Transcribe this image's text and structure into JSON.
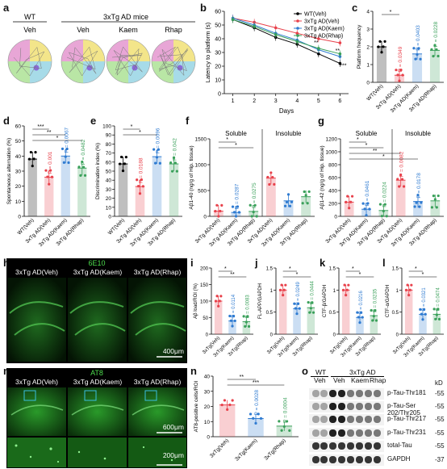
{
  "panel_labels": {
    "a": "a",
    "b": "b",
    "c": "c",
    "d": "d",
    "e": "e",
    "f": "f",
    "g": "g",
    "h": "h",
    "i": "i",
    "j": "j",
    "k": "k",
    "l": "l",
    "m": "m",
    "n": "n",
    "o": "o"
  },
  "colors": {
    "veh": "#000000",
    "ad_veh": "#e8414b",
    "ad_kaem": "#2f7bd1",
    "ad_rhap": "#3aa05a"
  },
  "panel_a": {
    "wt_header": "WT",
    "ad_header": "3xTg AD mice",
    "groups": [
      "Veh",
      "Veh",
      "Kaem",
      "Rhap"
    ]
  },
  "chart_data": [
    {
      "id": "b",
      "type": "line",
      "title": "",
      "xlabel": "Days",
      "ylabel": "Latency to platform (s)",
      "x": [
        1,
        2,
        3,
        4,
        5,
        6
      ],
      "ylim": [
        0,
        60
      ],
      "yticks": [
        0,
        10,
        20,
        30,
        40,
        50,
        60
      ],
      "series": [
        {
          "name": "WT(Veh)",
          "values": [
            54,
            48,
            41,
            36,
            29,
            22
          ]
        },
        {
          "name": "3xTg AD(Veh)",
          "values": [
            55,
            52,
            48,
            44,
            40,
            37
          ]
        },
        {
          "name": "3xTg AD(Kaem)",
          "values": [
            55,
            50,
            44,
            39,
            32,
            27
          ]
        },
        {
          "name": "3xTg AD(Rhap)",
          "values": [
            54,
            49,
            43,
            38,
            33,
            29
          ]
        }
      ],
      "annotations": [
        "**",
        "**",
        "***"
      ]
    },
    {
      "id": "c",
      "type": "bar",
      "ylabel": "Platform frequency",
      "ylim": [
        0,
        4
      ],
      "yticks": [
        0,
        1,
        2,
        3,
        4
      ],
      "categories": [
        "WT(Veh)",
        "3xTg AD(Veh)",
        "3xTg AD(Kaem)",
        "3xTg AD(Rhap)"
      ],
      "values": [
        2.0,
        0.4,
        1.6,
        1.8
      ],
      "pvalues": [
        "P = 0.0349",
        "*",
        "P = 0.0403",
        "P = 0.0228"
      ]
    },
    {
      "id": "d",
      "type": "bar",
      "ylabel": "Spontaneous alternation (%)",
      "ylim": [
        0,
        60
      ],
      "yticks": [
        0,
        10,
        20,
        30,
        40,
        50,
        60
      ],
      "categories": [
        "WT(Veh)",
        "3xTg AD(Veh)",
        "3xTg AD(Kaem)",
        "3xTg AD(Rhap)"
      ],
      "values": [
        38,
        26,
        40,
        32
      ],
      "pvalues": [
        "***",
        "P = 0.001",
        "**",
        "P = 0.0067",
        "P = 0.0482",
        "*"
      ]
    },
    {
      "id": "e",
      "type": "bar",
      "ylabel": "Discrimination index (%)",
      "ylim": [
        0,
        100
      ],
      "yticks": [
        0,
        10,
        20,
        30,
        40,
        50,
        60,
        70,
        80,
        90,
        100
      ],
      "categories": [
        "WT(Veh)",
        "3xTg AD(Veh)",
        "3xTg AD(Kaem)",
        "3xTg AD(Rhap)"
      ],
      "values": [
        58,
        33,
        66,
        58
      ],
      "pvalues": [
        "*",
        "P = 0.0188",
        "*",
        "P = 0.0096",
        "P = 0.042"
      ]
    },
    {
      "id": "f",
      "type": "bar",
      "ylabel": "Aβ1-40 (ng/g of Hip. tissue)",
      "ylim": [
        0,
        1500
      ],
      "yticks": [
        0,
        500,
        1000,
        1500
      ],
      "groups": [
        "Soluble",
        "Insoluble"
      ],
      "categories": [
        "3xTg AD(Veh)",
        "3xTg AD(Kaem)",
        "3xTg AD(Rhap)",
        "3xTg AD(Veh)",
        "3xTg AD(Kaem)",
        "3xTg AD(Rhap)"
      ],
      "values": [
        100,
        75,
        95,
        740,
        300,
        380
      ],
      "pvalues": [
        "*",
        "*",
        "P = 0.0287",
        "P = 0.0275"
      ]
    },
    {
      "id": "g",
      "type": "bar",
      "ylabel": "Aβ1-42 (ng/g of Hip. tissue)",
      "ylim": [
        0,
        1200
      ],
      "yticks": [
        0,
        200,
        400,
        600,
        800,
        1000,
        1200
      ],
      "groups": [
        "Soluble",
        "Insoluble"
      ],
      "categories": [
        "3xTg AD(Veh)",
        "3xTg AD(Kaem)",
        "3xTg AD(Rhap)",
        "3xTg AD(Veh)",
        "3xTg AD(Kaem)",
        "3xTg AD(Rhap)"
      ],
      "values": [
        220,
        110,
        90,
        560,
        230,
        240
      ],
      "pvalues": [
        "*",
        "*",
        "P = 0.0461",
        "P = 0.0224",
        "**",
        "*",
        "P = 0.0082",
        "P = 0.0178"
      ]
    },
    {
      "id": "i",
      "type": "bar",
      "ylabel": "Aβ load/ROI (%)",
      "ylim": [
        0,
        200
      ],
      "yticks": [
        0,
        50,
        100,
        150,
        200
      ],
      "categories": [
        "3xTg(Veh)",
        "3xTg(Kaem)",
        "3xTg(Rhap)"
      ],
      "values": [
        100,
        40,
        38
      ],
      "pvalues": [
        "P = 0.0114",
        "P = 0.0083",
        "*",
        "**"
      ]
    },
    {
      "id": "j",
      "type": "bar",
      "ylabel": "FL-APP/GAPDH",
      "ylim": [
        0,
        1.5
      ],
      "yticks": [
        0,
        0.5,
        1.0,
        1.5
      ],
      "categories": [
        "3xTg(Veh)",
        "3xTg(Kaem)",
        "3xTg(Rhap)"
      ],
      "values": [
        1.0,
        0.58,
        0.6
      ],
      "pvalues": [
        "P = 0.0249",
        "P = 0.0444",
        "*",
        "*"
      ]
    },
    {
      "id": "k",
      "type": "bar",
      "ylabel": "CTF-β/GAPDH",
      "ylim": [
        0,
        1.5
      ],
      "yticks": [
        0,
        0.5,
        1.0,
        1.5
      ],
      "categories": [
        "3xTg(Veh)",
        "3xTg(Kaem)",
        "3xTg(Rhap)"
      ],
      "values": [
        1.0,
        0.38,
        0.42
      ],
      "pvalues": [
        "P = 0.0216",
        "P = 0.0235",
        "*",
        "*"
      ]
    },
    {
      "id": "l",
      "type": "bar",
      "ylabel": "CTF-α/GAPDH",
      "ylim": [
        0,
        1.5
      ],
      "yticks": [
        0,
        0.5,
        1.0,
        1.5
      ],
      "categories": [
        "3xTg(Veh)",
        "3xTg(Kaem)",
        "3xTg(Rhap)"
      ],
      "values": [
        1.0,
        0.45,
        0.45
      ],
      "pvalues": [
        "P = 0.0321",
        "P = 0.0474",
        "*",
        "*"
      ]
    },
    {
      "id": "n",
      "type": "bar",
      "ylabel": "AT8-positive cells/ROI",
      "ylim": [
        0,
        40
      ],
      "yticks": [
        0,
        10,
        20,
        30,
        40
      ],
      "categories": [
        "3xTg(Veh)",
        "3xTg(Kaem)",
        "3xTg(Rhap)"
      ],
      "values": [
        21,
        12,
        7
      ],
      "pvalues": [
        "P = 0.0028",
        "P = 0.0004",
        "**",
        "***"
      ]
    }
  ],
  "panel_h": {
    "stain": "6E10",
    "titles": [
      "3xTg AD(Veh)",
      "3xTg AD(Kaem)",
      "3xTg AD(Rhap)"
    ],
    "scale": "400μm"
  },
  "panel_m": {
    "stain": "AT8",
    "titles": [
      "3xTg AD(Veh)",
      "3xTg AD(Kaem)",
      "3xTg AD(Rhap)"
    ],
    "scale_top": "600μm",
    "scale_bottom": "200μm"
  },
  "panel_o": {
    "header_wt": "WT",
    "header_ad": "3xTg AD",
    "lanes": [
      "Veh",
      "Veh",
      "Kaem",
      "Rhap"
    ],
    "kd": "kD",
    "rows": [
      {
        "label": "p-Tau-Thr181",
        "kd": "-55"
      },
      {
        "label": "p-Tau-Ser 202/Thr205",
        "kd": "-55"
      },
      {
        "label": "p-Tau-Thr217",
        "kd": "-55"
      },
      {
        "label": "p-Tau-Thr231",
        "kd": "-55"
      },
      {
        "label": "total-Tau",
        "kd": "-55"
      },
      {
        "label": "GAPDH",
        "kd": "-37"
      }
    ]
  }
}
